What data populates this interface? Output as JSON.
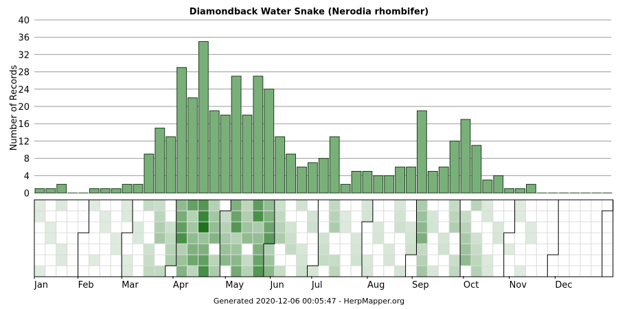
{
  "chart_data": {
    "type": "bar",
    "title": "Diamondback Water Snake (Nerodia rhombifer)",
    "ylabel": "Number of Records",
    "xlabel": "",
    "ylim": [
      0,
      40
    ],
    "yticks": [
      "0",
      "4",
      "8",
      "12",
      "16",
      "20",
      "24",
      "28",
      "32",
      "36",
      "40"
    ],
    "months": [
      "Jan",
      "Feb",
      "Mar",
      "Apr",
      "May",
      "Jun",
      "Jul",
      "Aug",
      "Sep",
      "Oct",
      "Nov",
      "Dec"
    ],
    "week_values": [
      1,
      1,
      2,
      0,
      0,
      1,
      1,
      1,
      2,
      2,
      9,
      15,
      13,
      29,
      22,
      35,
      19,
      18,
      27,
      18,
      27,
      24,
      13,
      9,
      6,
      7,
      8,
      13,
      2,
      5,
      5,
      4,
      4,
      6,
      6,
      19,
      5,
      6,
      12,
      17,
      11,
      3,
      4,
      1,
      1,
      2,
      0,
      0,
      0,
      0,
      0,
      0,
      0
    ],
    "grid": true,
    "bar_color": "#79b079",
    "heat_color_max": "#006400",
    "footer": "Generated 2020-12-06 00:05:47 - HerpMapper.org"
  }
}
